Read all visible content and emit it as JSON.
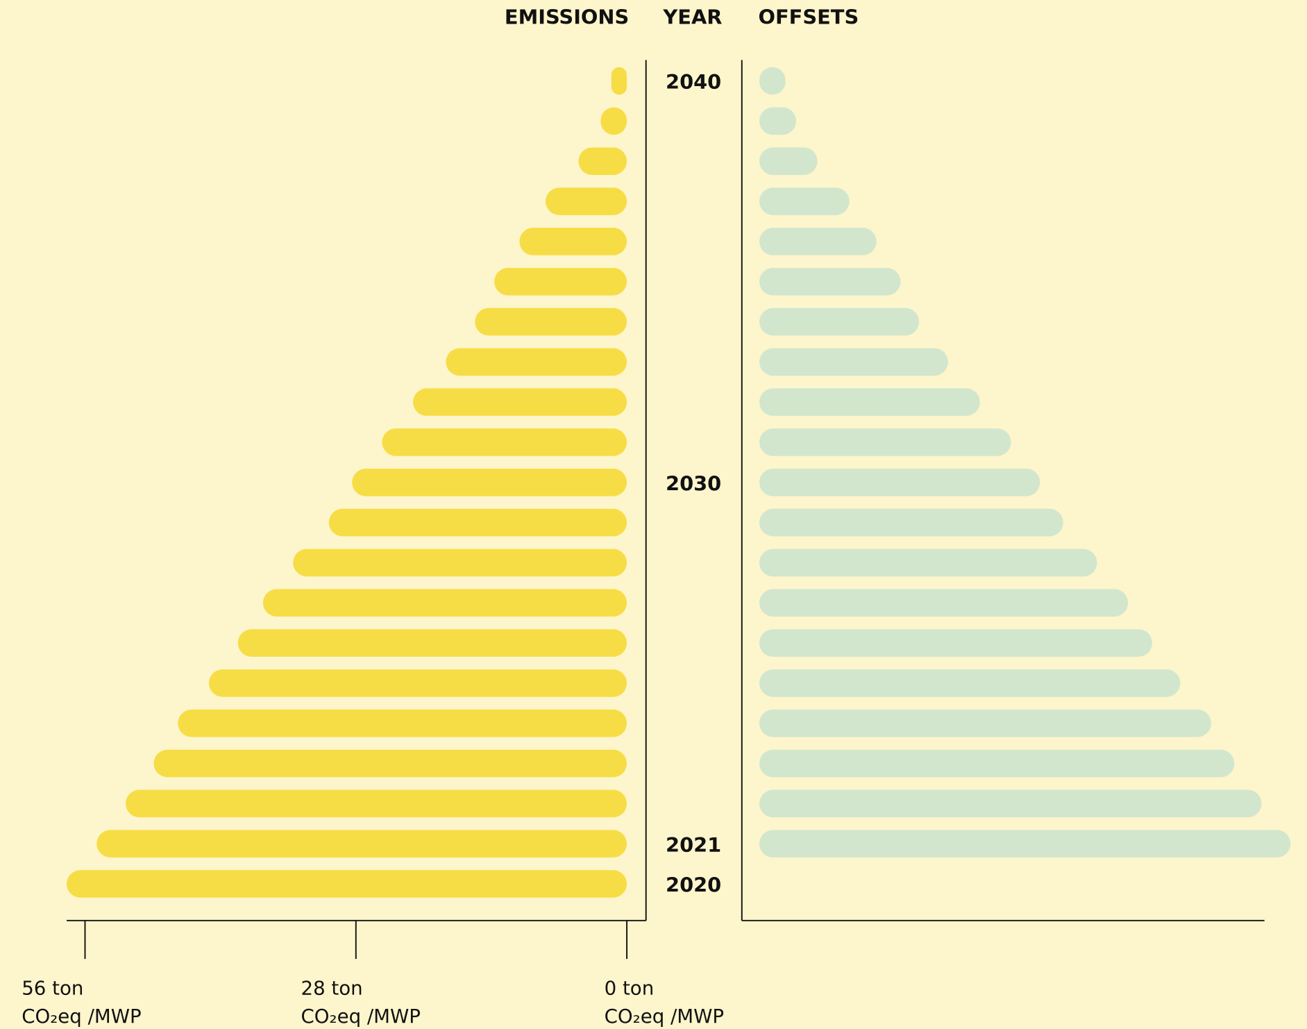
{
  "chart_data": {
    "type": "bar",
    "orientation": "horizontal",
    "category_header": "YEAR",
    "categories": [
      "2020",
      "2021",
      null,
      null,
      null,
      null,
      null,
      null,
      null,
      null,
      "2030",
      null,
      null,
      null,
      null,
      null,
      null,
      null,
      null,
      null,
      "2040"
    ],
    "series": [
      {
        "name": "EMISSIONS",
        "color": "#f7dd45",
        "values": [
          57.9,
          54.8,
          51.8,
          48.9,
          46.4,
          43.2,
          40.2,
          37.6,
          34.5,
          30.8,
          28.4,
          25.3,
          22.1,
          18.7,
          15.7,
          13.7,
          11.1,
          8.4,
          5.0,
          2.7,
          1.6
        ]
      },
      {
        "name": "OFFSETS",
        "color": "#d1e6cd",
        "axis": "x2",
        "values": [
          null,
          54.9,
          51.9,
          49.1,
          46.7,
          43.5,
          40.6,
          38.1,
          34.9,
          31.4,
          29.0,
          26.0,
          22.8,
          19.5,
          16.5,
          14.6,
          12.1,
          9.3,
          6.0,
          3.8,
          2.7
        ]
      }
    ],
    "xlim": [
      0,
      56
    ],
    "xticks": [
      {
        "value": 56,
        "label": "56 ton"
      },
      {
        "value": 28,
        "label": "28 ton"
      },
      {
        "value": 0,
        "label": "0 ton"
      }
    ],
    "x_unit": "CO₂eq /MWP",
    "x2lim": [
      0,
      56
    ]
  }
}
